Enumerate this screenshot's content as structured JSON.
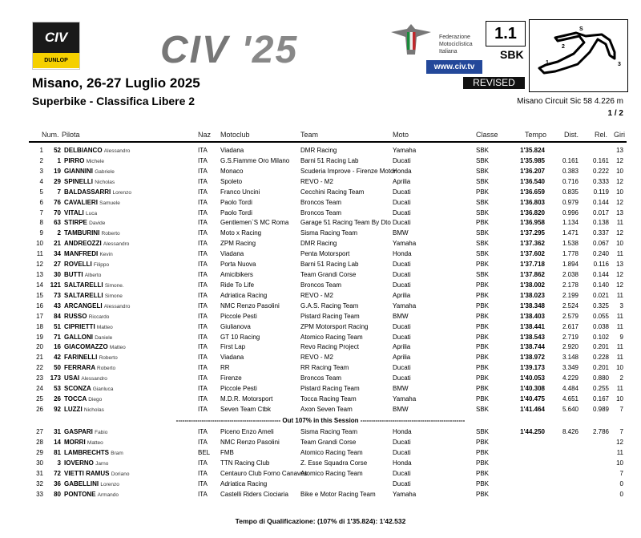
{
  "header": {
    "civ_logo": "CIV",
    "dunlop": "DUNLOP",
    "big_logo": "CIV",
    "big_logo_year": "'25",
    "federation": "Federazione Motociclistica Italiana",
    "website": "www.civ.tv",
    "status": "REVISED",
    "doc_code": "1.1",
    "class": "SBK",
    "circuit": "Misano Circuit Sic 58 4.226 m",
    "page": "1 / 2",
    "event": "Misano, 26-27 Luglio 2025",
    "session": "Superbike - Classifica Libere 2",
    "track_corners": [
      "S",
      "2",
      "1",
      "3"
    ]
  },
  "columns": {
    "num": "Num.",
    "pilota": "Pilota",
    "naz": "Naz",
    "motoclub": "Motoclub",
    "team": "Team",
    "moto": "Moto",
    "classe": "Classe",
    "tempo": "Tempo",
    "dist": "Dist.",
    "rel": "Rel.",
    "giri": "Giri"
  },
  "rows": [
    [
      "1",
      "52",
      "DELBIANCO",
      "Alessandro",
      "ITA",
      "Viadana",
      "DMR Racing",
      "Yamaha",
      "SBK",
      "1'35.824",
      "",
      "",
      "13"
    ],
    [
      "2",
      "1",
      "PIRRO",
      "Michele",
      "ITA",
      "G.S.Fiamme Oro Milano",
      "Barni 51 Racing Lab",
      "Ducati",
      "SBK",
      "1'35.985",
      "0.161",
      "0.161",
      "12"
    ],
    [
      "3",
      "19",
      "GIANNINI",
      "Gabriele",
      "ITA",
      "Monaco",
      "Scuderia Improve - Firenze Motor",
      "Honda",
      "SBK",
      "1'36.207",
      "0.383",
      "0.222",
      "10"
    ],
    [
      "4",
      "29",
      "SPINELLI",
      "Nicholas",
      "ITA",
      "Spoleto",
      "REVO - M2",
      "Aprilia",
      "SBK",
      "1'36.540",
      "0.716",
      "0.333",
      "12"
    ],
    [
      "5",
      "7",
      "BALDASSARRI",
      "Lorenzo",
      "ITA",
      "Franco Uncini",
      "Cecchini Racing Team",
      "Ducati",
      "PBK",
      "1'36.659",
      "0.835",
      "0.119",
      "10"
    ],
    [
      "6",
      "76",
      "CAVALIERI",
      "Samuele",
      "ITA",
      "Paolo Tordi",
      "Broncos Team",
      "Ducati",
      "SBK",
      "1'36.803",
      "0.979",
      "0.144",
      "12"
    ],
    [
      "7",
      "70",
      "VITALI",
      "Luca",
      "ITA",
      "Paolo Tordi",
      "Broncos Team",
      "Ducati",
      "SBK",
      "1'36.820",
      "0.996",
      "0.017",
      "13"
    ],
    [
      "8",
      "63",
      "STIRPE",
      "Davide",
      "ITA",
      "Gentlemen`S MC Roma",
      "Garage 51 Racing Team By Dto",
      "Ducati",
      "PBK",
      "1'36.958",
      "1.134",
      "0.138",
      "11"
    ],
    [
      "9",
      "2",
      "TAMBURINI",
      "Roberto",
      "ITA",
      "Moto x Racing",
      "Sisma Racing Team",
      "BMW",
      "SBK",
      "1'37.295",
      "1.471",
      "0.337",
      "12"
    ],
    [
      "10",
      "21",
      "ANDREOZZI",
      "Alessandro",
      "ITA",
      "ZPM Racing",
      "DMR Racing",
      "Yamaha",
      "SBK",
      "1'37.362",
      "1.538",
      "0.067",
      "10"
    ],
    [
      "11",
      "34",
      "MANFREDI",
      "Kevin",
      "ITA",
      "Viadana",
      "Penta Motorsport",
      "Honda",
      "SBK",
      "1'37.602",
      "1.778",
      "0.240",
      "11"
    ],
    [
      "12",
      "27",
      "ROVELLI",
      "Filippo",
      "ITA",
      "Porta Nuova",
      "Barni 51 Racing Lab",
      "Ducati",
      "PBK",
      "1'37.718",
      "1.894",
      "0.116",
      "13"
    ],
    [
      "13",
      "30",
      "BUTTI",
      "Alberto",
      "ITA",
      "Amicibikers",
      "Team Grandi Corse",
      "Ducati",
      "SBK",
      "1'37.862",
      "2.038",
      "0.144",
      "12"
    ],
    [
      "14",
      "121",
      "SALTARELLI",
      "Simone.",
      "ITA",
      "Ride To Life",
      "Broncos Team",
      "Ducati",
      "PBK",
      "1'38.002",
      "2.178",
      "0.140",
      "12"
    ],
    [
      "15",
      "73",
      "SALTARELLI",
      "Simone",
      "ITA",
      "Adriatica Racing",
      "REVO - M2",
      "Aprilia",
      "PBK",
      "1'38.023",
      "2.199",
      "0.021",
      "11"
    ],
    [
      "16",
      "43",
      "ARCANGELI",
      "Alessandro",
      "ITA",
      "NMC Renzo Pasolini",
      "G.A.S. Racing Team",
      "Yamaha",
      "PBK",
      "1'38.348",
      "2.524",
      "0.325",
      "3"
    ],
    [
      "17",
      "84",
      "RUSSO",
      "Riccardo",
      "ITA",
      "Piccole Pesti",
      "Pistard Racing Team",
      "BMW",
      "PBK",
      "1'38.403",
      "2.579",
      "0.055",
      "11"
    ],
    [
      "18",
      "51",
      "CIPRIETTI",
      "Matteo",
      "ITA",
      "Giulianova",
      "ZPM Motorsport Racing",
      "Ducati",
      "PBK",
      "1'38.441",
      "2.617",
      "0.038",
      "11"
    ],
    [
      "19",
      "71",
      "GALLONI",
      "Daniele",
      "ITA",
      "GT 10 Racing",
      "Atomico Racing Team",
      "Ducati",
      "PBK",
      "1'38.543",
      "2.719",
      "0.102",
      "9"
    ],
    [
      "20",
      "16",
      "GIACOMAZZO",
      "Matteo",
      "ITA",
      "First Lap",
      "Revo Racing Project",
      "Aprilia",
      "PBK",
      "1'38.744",
      "2.920",
      "0.201",
      "11"
    ],
    [
      "21",
      "42",
      "FARINELLI",
      "Roberto",
      "ITA",
      "Viadana",
      "REVO - M2",
      "Aprilia",
      "PBK",
      "1'38.972",
      "3.148",
      "0.228",
      "11"
    ],
    [
      "22",
      "50",
      "FERRARA",
      "Roberto",
      "ITA",
      "RR",
      "RR Racing Team",
      "Ducati",
      "PBK",
      "1'39.173",
      "3.349",
      "0.201",
      "10"
    ],
    [
      "23",
      "173",
      "USAI",
      "Alessandro",
      "ITA",
      "Firenze",
      "Broncos Team",
      "Ducati",
      "PBK",
      "1'40.053",
      "4.229",
      "0.880",
      "2"
    ],
    [
      "24",
      "53",
      "SCONZA",
      "Gianluca",
      "ITA",
      "Piccole Pesti",
      "Pistard Racing Team",
      "BMW",
      "PBK",
      "1'40.308",
      "4.484",
      "0.255",
      "11"
    ],
    [
      "25",
      "26",
      "TOCCA",
      "Diego",
      "ITA",
      "M.D.R. Motorsport",
      "Tocca Racing Team",
      "Yamaha",
      "PBK",
      "1'40.475",
      "4.651",
      "0.167",
      "10"
    ],
    [
      "26",
      "92",
      "LUZZI",
      "Nicholas",
      "ITA",
      "Seven Team Ctbk",
      "Axon Seven Team",
      "BMW",
      "SBK",
      "1'41.464",
      "5.640",
      "0.989",
      "7"
    ],
    [
      "27",
      "31",
      "GASPARI",
      "Fabio",
      "ITA",
      "Piceno Enzo Ameli",
      "Sisma Racing Team",
      "Honda",
      "SBK",
      "1'44.250",
      "8.426",
      "2.786",
      "7"
    ],
    [
      "28",
      "14",
      "MORRI",
      "Matteo",
      "ITA",
      "NMC Renzo Pasolini",
      "Team Grandi Corse",
      "Ducati",
      "PBK",
      "",
      "",
      "",
      "12"
    ],
    [
      "29",
      "81",
      "LAMBRECHTS",
      "Bram",
      "BEL",
      "FMB",
      "Atomico Racing Team",
      "Ducati",
      "PBK",
      "",
      "",
      "",
      "11"
    ],
    [
      "30",
      "3",
      "IOVERNO",
      "Jarno",
      "ITA",
      "TTN Racing Club",
      "Z. Esse Squadra Corse",
      "Honda",
      "PBK",
      "",
      "",
      "",
      "10"
    ],
    [
      "31",
      "72",
      "VIETTI RAMUS",
      "Doriano",
      "ITA",
      "Centauro Club Forno Canaves",
      "Atomico Racing Team",
      "Ducati",
      "PBK",
      "",
      "",
      "",
      "7"
    ],
    [
      "32",
      "36",
      "GABELLINI",
      "Lorenzo",
      "ITA",
      "Adriatica Racing",
      "",
      "Ducati",
      "PBK",
      "",
      "",
      "",
      "0"
    ],
    [
      "33",
      "80",
      "PONTONE",
      "Armando",
      "ITA",
      "Castelli Riders Ciociaria",
      "Bike e Motor Racing Team",
      "Yamaha",
      "PBK",
      "",
      "",
      "",
      "0"
    ]
  ],
  "separator": "Out 107% in this Session",
  "footer": "Tempo di Qualificazione: (107% di 1'35.824):   1'42.532"
}
